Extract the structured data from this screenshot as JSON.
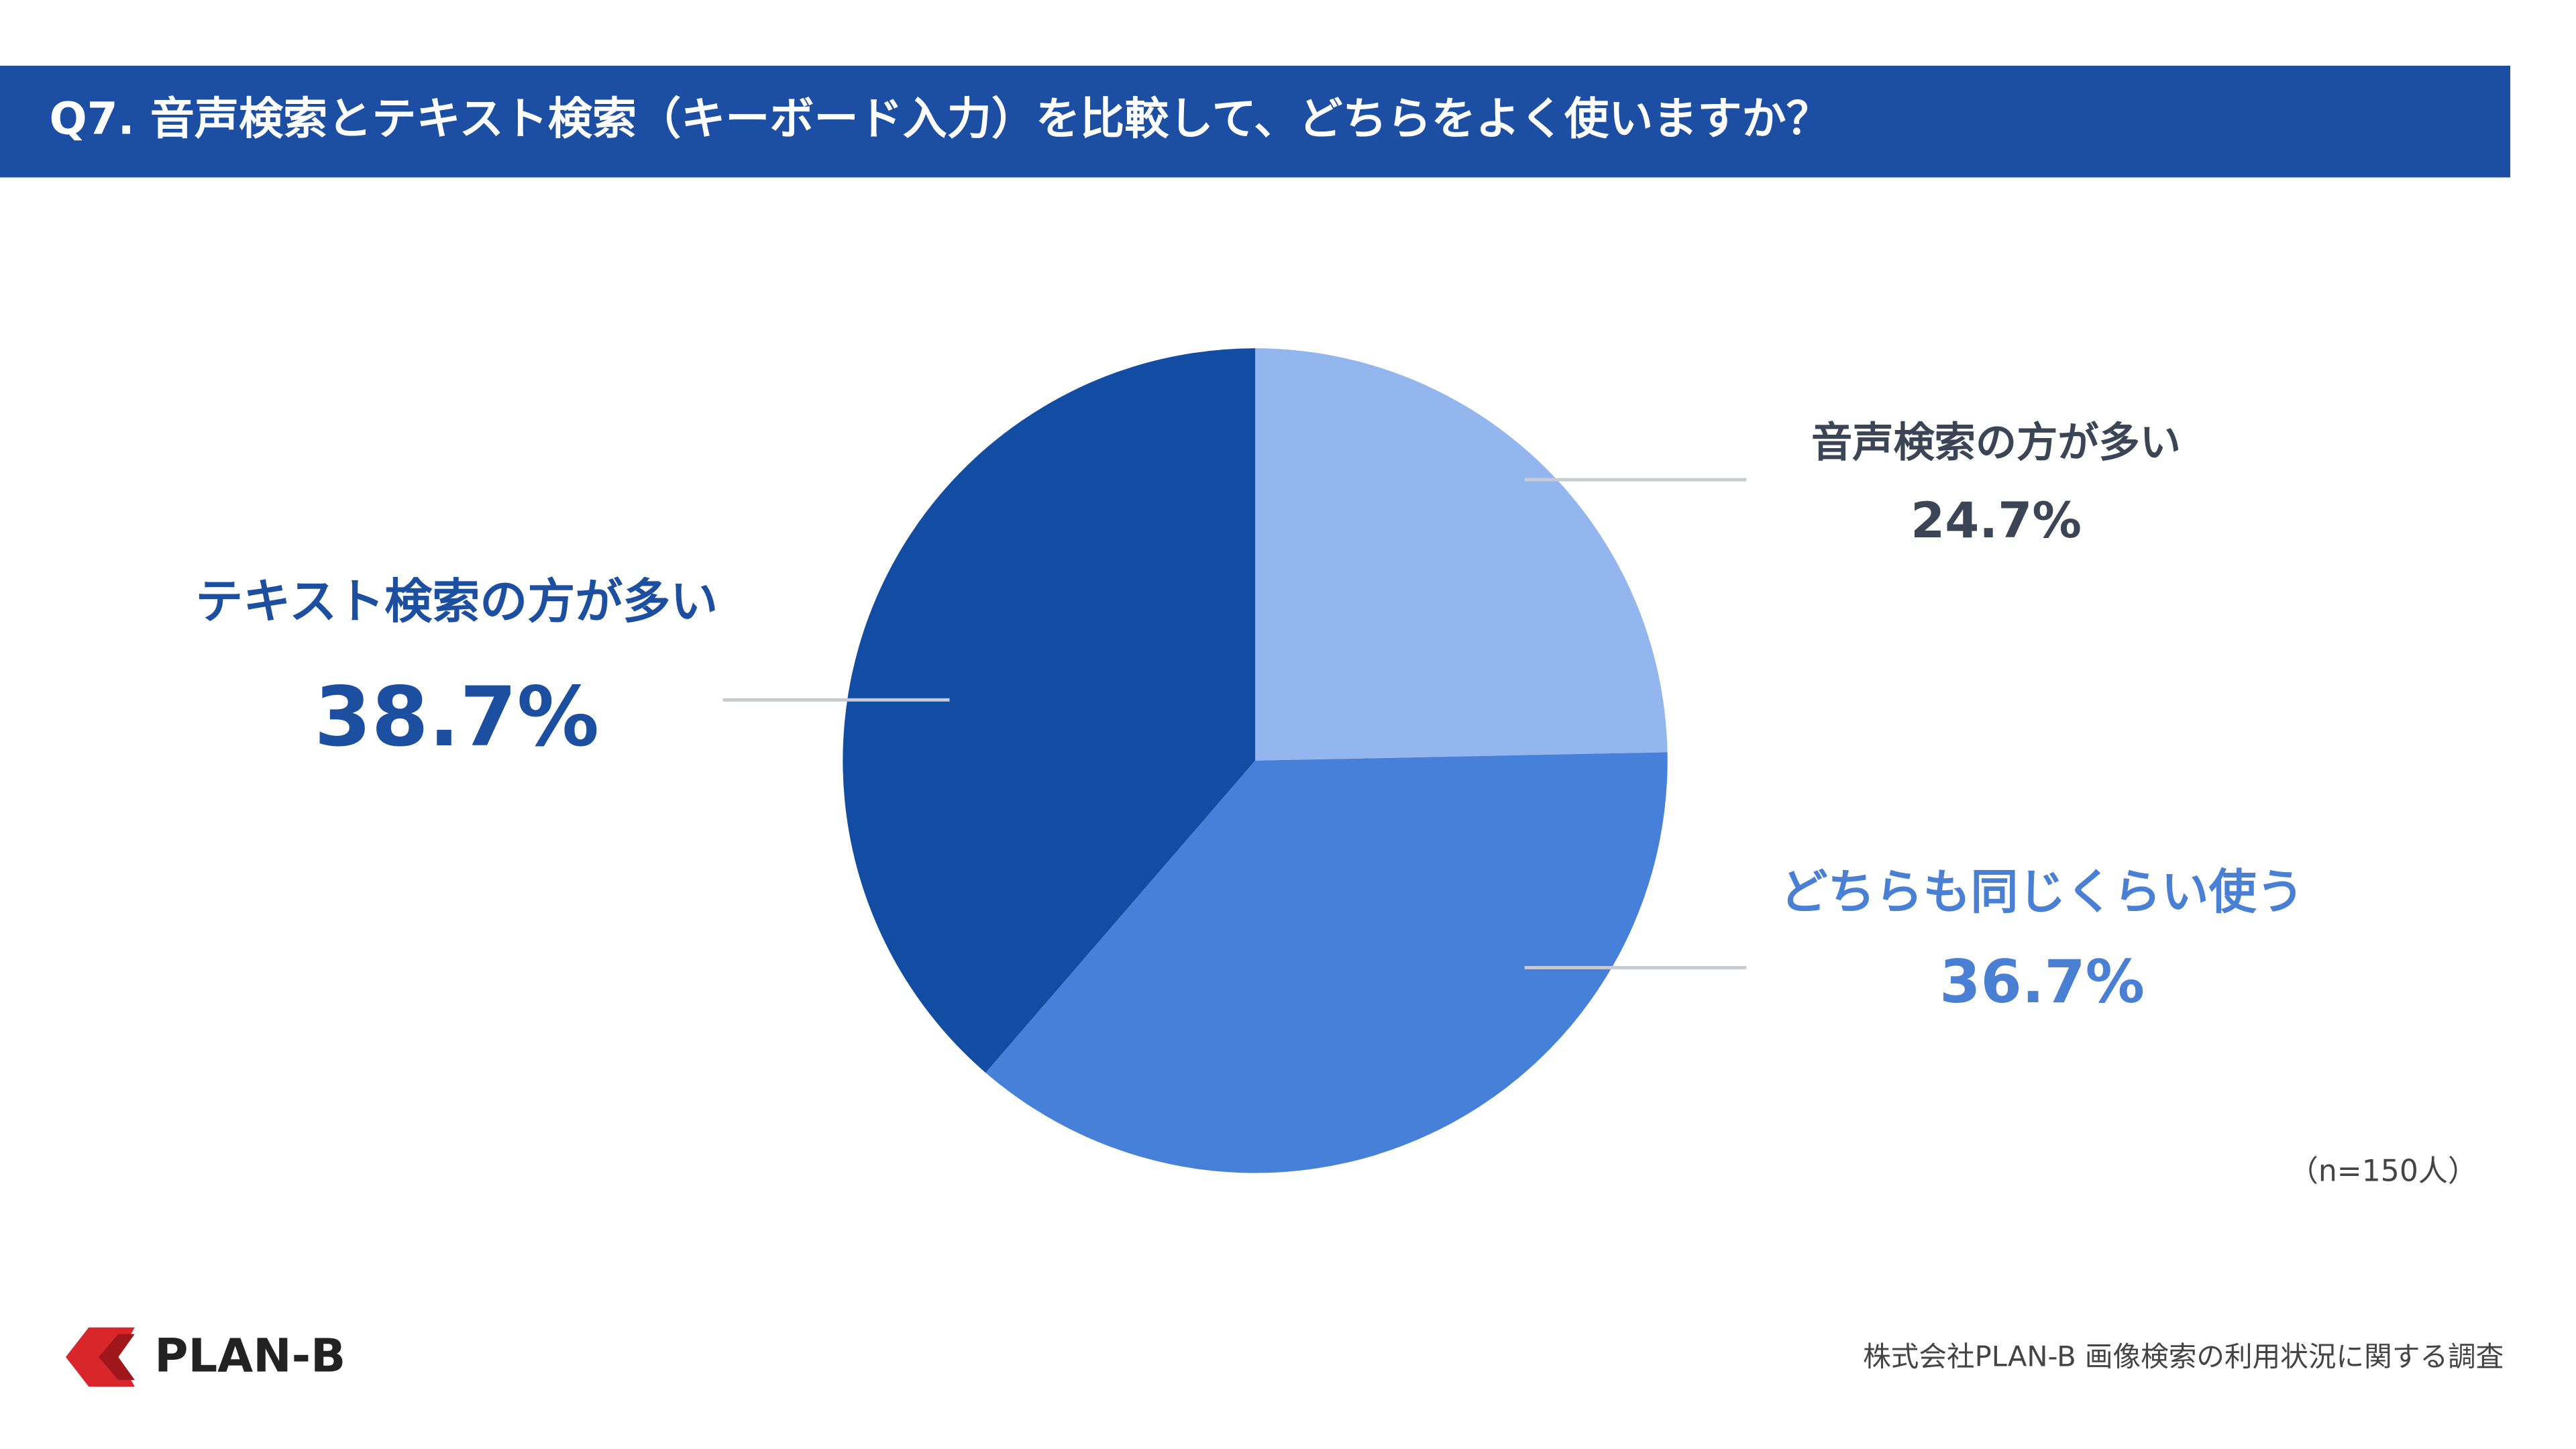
{
  "chart_data": {
    "type": "pie",
    "title": "Q7. 音声検索とテキスト検索（キーボード入力）を比較して、どちらをよく使いますか？",
    "categories": [
      "音声検索の方が多い",
      "どちらも同じくらい使う",
      "テキスト検索の方が多い"
    ],
    "values": [
      24.7,
      36.7,
      38.7
    ],
    "value_labels": [
      "24.7%",
      "36.7%",
      "38.7%"
    ],
    "colors": [
      "#94b6ee",
      "#4680d8",
      "#134ca3"
    ],
    "label_colors": [
      "#3b4555",
      "#4a80d4",
      "#1d4fa0"
    ],
    "note": "（n=150人）",
    "source": "株式会社PLAN-B 画像検索の利用状況に関する調査"
  },
  "logo": "PLAN-B"
}
